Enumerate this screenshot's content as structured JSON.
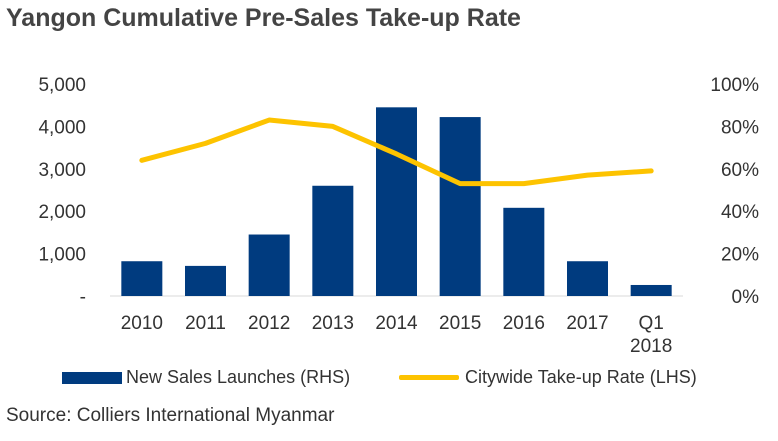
{
  "title": "Yangon Cumulative Pre-Sales Take-up Rate",
  "source": "Source: Colliers International Myanmar",
  "colors": {
    "bar": "#003b7f",
    "line": "#fdc300"
  },
  "chart_data": {
    "type": "bar",
    "title": "Yangon Cumulative Pre-Sales Take-up Rate",
    "categories": [
      "2010",
      "2011",
      "2012",
      "2013",
      "2014",
      "2015",
      "2016",
      "2017",
      "Q1 2018"
    ],
    "category_labels": [
      [
        "2010"
      ],
      [
        "2011"
      ],
      [
        "2012"
      ],
      [
        "2013"
      ],
      [
        "2014"
      ],
      [
        "2015"
      ],
      [
        "2016"
      ],
      [
        "2017"
      ],
      [
        "Q1",
        "2018"
      ]
    ],
    "series": [
      {
        "name": "New Sales Launches (RHS)",
        "type": "bar",
        "axis": "left",
        "values": [
          820,
          710,
          1450,
          2600,
          4450,
          4220,
          2080,
          820,
          260
        ]
      },
      {
        "name": "Citywide Take-up Rate (LHS)",
        "type": "line",
        "axis": "right",
        "values": [
          64,
          72,
          83,
          80,
          67,
          53,
          53,
          57,
          59
        ]
      }
    ],
    "y_left": {
      "ylim": [
        0,
        5000
      ],
      "ticks": [
        "-",
        "1,000",
        "2,000",
        "3,000",
        "4,000",
        "5,000"
      ]
    },
    "y_right": {
      "ylim": [
        0,
        100
      ],
      "ticks": [
        "0%",
        "20%",
        "40%",
        "60%",
        "80%",
        "100%"
      ]
    },
    "grid": false,
    "legend_position": "bottom"
  }
}
